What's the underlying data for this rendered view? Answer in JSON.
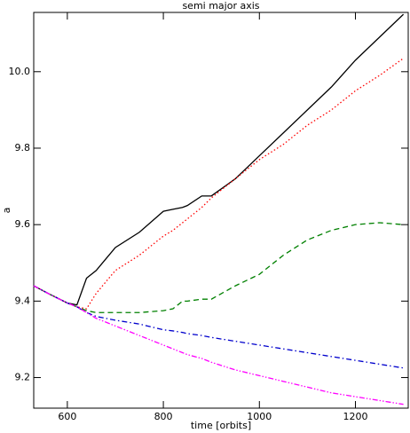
{
  "chart_data": {
    "type": "line",
    "title": "semi major axis",
    "x_label": "time [orbits]",
    "y_label": "a",
    "x": [
      530,
      560,
      600,
      620,
      640,
      660,
      680,
      700,
      750,
      800,
      820,
      840,
      850,
      880,
      900,
      950,
      1000,
      1050,
      1100,
      1150,
      1200,
      1250,
      1300
    ],
    "series": [
      {
        "color": "#000000",
        "dash": "solid",
        "values": [
          9.44,
          9.42,
          9.395,
          9.39,
          9.46,
          9.48,
          9.51,
          9.54,
          9.58,
          9.635,
          9.64,
          9.645,
          9.65,
          9.675,
          9.675,
          9.72,
          9.78,
          9.84,
          9.9,
          9.96,
          10.03,
          10.09,
          10.15
        ]
      },
      {
        "color": "#ff0000",
        "dash": "dotted",
        "values": [
          9.44,
          9.42,
          9.395,
          9.385,
          9.38,
          9.42,
          9.45,
          9.48,
          9.52,
          9.57,
          9.585,
          9.605,
          9.615,
          9.645,
          9.67,
          9.72,
          9.77,
          9.81,
          9.86,
          9.9,
          9.95,
          9.99,
          10.035
        ]
      },
      {
        "color": "#008000",
        "dash": "dashed",
        "values": [
          9.44,
          9.42,
          9.395,
          9.385,
          9.375,
          9.37,
          9.37,
          9.37,
          9.37,
          9.375,
          9.38,
          9.4,
          9.4,
          9.405,
          9.405,
          9.44,
          9.47,
          9.52,
          9.56,
          9.585,
          9.6,
          9.605,
          9.6
        ]
      },
      {
        "color": "#0000cc",
        "dash": "dashdot",
        "values": [
          9.44,
          9.42,
          9.395,
          9.385,
          9.37,
          9.36,
          9.355,
          9.35,
          9.34,
          9.325,
          9.322,
          9.318,
          9.315,
          9.31,
          9.305,
          9.295,
          9.285,
          9.275,
          9.265,
          9.255,
          9.245,
          9.235,
          9.225
        ]
      },
      {
        "color": "#ff00ff",
        "dash": "dashdotdot",
        "values": [
          9.44,
          9.42,
          9.395,
          9.385,
          9.37,
          9.355,
          9.345,
          9.335,
          9.31,
          9.285,
          9.275,
          9.265,
          9.26,
          9.25,
          9.24,
          9.22,
          9.205,
          9.19,
          9.175,
          9.16,
          9.15,
          9.14,
          9.13
        ]
      }
    ],
    "xlim": [
      530,
      1310
    ],
    "xticks": [
      600,
      800,
      1000,
      1200
    ],
    "ylim": [
      9.12,
      10.155
    ],
    "yticks": [
      9.2,
      9.4,
      9.6,
      9.8,
      {
        "value": 10,
        "label": "10.0"
      }
    ]
  }
}
